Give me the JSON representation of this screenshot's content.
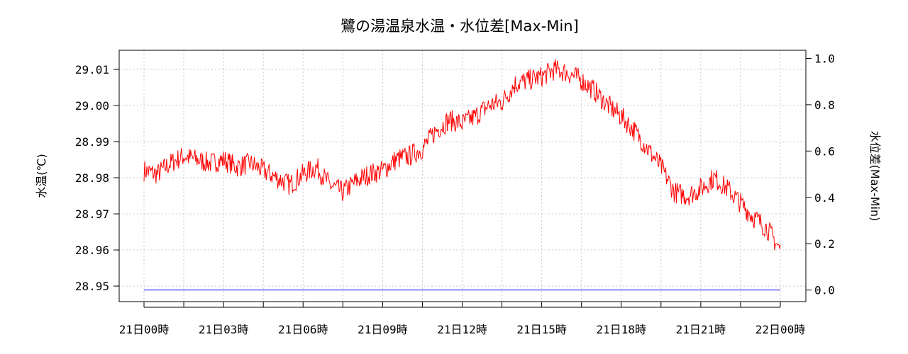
{
  "chart_data": {
    "type": "line",
    "title": "鷺の湯温泉水温・水位差[Max-Min]",
    "ylabel_left": "水温(℃)",
    "ylabel_right": "水位差(Max-Min)",
    "x_ticks": [
      "21日00時",
      "21日03時",
      "21日06時",
      "21日09時",
      "21日12時",
      "21日15時",
      "21日18時",
      "21日21時",
      "22日00時"
    ],
    "x_range_hours": [
      0,
      24
    ],
    "y_left_ticks": [
      "28.95",
      "28.96",
      "28.97",
      "28.98",
      "28.99",
      "29.00",
      "29.01"
    ],
    "y_left_range": [
      28.9457,
      29.0153
    ],
    "y_right_ticks": [
      "0.0",
      "0.2",
      "0.4",
      "0.6",
      "0.8",
      "1.0"
    ],
    "y_right_range": [
      -0.05,
      1.035
    ],
    "grid": true,
    "series": [
      {
        "axis": "left",
        "color": "#ff0000",
        "x": [
          0,
          0.5,
          1,
          1.5,
          2,
          2.5,
          3,
          3.5,
          4,
          4.5,
          5,
          5.5,
          6,
          6.5,
          7,
          7.5,
          8,
          8.5,
          9,
          9.5,
          10,
          10.5,
          11,
          11.5,
          12,
          12.5,
          13,
          13.5,
          14,
          14.5,
          15,
          15.5,
          16,
          16.5,
          17,
          17.5,
          18,
          18.5,
          19,
          19.5,
          20,
          20.5,
          21,
          21.5,
          22,
          22.5,
          23,
          23.5,
          24
        ],
        "values": [
          28.982,
          28.981,
          28.984,
          28.986,
          28.985,
          28.984,
          28.985,
          28.983,
          28.984,
          28.982,
          28.98,
          28.978,
          28.981,
          28.983,
          28.978,
          28.976,
          28.979,
          28.981,
          28.982,
          28.985,
          28.986,
          28.988,
          28.993,
          28.996,
          28.995,
          28.997,
          29.0,
          29.001,
          29.006,
          29.007,
          29.008,
          29.01,
          29.009,
          29.007,
          29.004,
          29.0,
          28.997,
          28.993,
          28.988,
          28.983,
          28.976,
          28.975,
          28.977,
          28.98,
          28.977,
          28.973,
          28.969,
          28.966,
          28.96
        ]
      },
      {
        "axis": "right",
        "color": "#0000ff",
        "x": [
          0,
          24
        ],
        "values": [
          0.0,
          0.0
        ]
      }
    ]
  }
}
